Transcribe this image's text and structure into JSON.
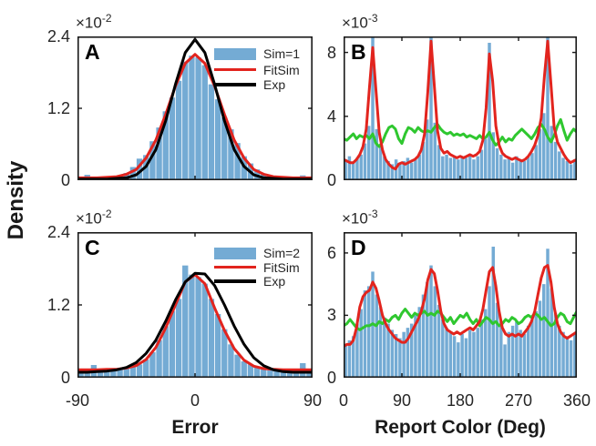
{
  "figure": {
    "ylabel": "Density",
    "xlabel_left": "Error",
    "xlabel_right": "Report Color (Deg)",
    "background": "#ffffff",
    "text_color": "#262626",
    "axis_color": "#1a1a1a"
  },
  "colors": {
    "hist": "#74ABD4",
    "fit": "#E2241E",
    "exp": "#000000",
    "green": "#2FC72F"
  },
  "chart_data": [
    {
      "id": "A",
      "type": "bar",
      "panel_label": "A",
      "exponent": {
        "base": "×10",
        "power": "-2"
      },
      "xlim": [
        -90,
        90
      ],
      "ylim": [
        0,
        2.4
      ],
      "xticks": [
        -90,
        0,
        90
      ],
      "xtick_labels": [
        "-90",
        "0",
        "90"
      ],
      "show_xtick_labels": false,
      "yticks": [
        0,
        1.2,
        2.4
      ],
      "ytick_labels": [
        "0",
        "1.2",
        "2.4"
      ],
      "legend": [
        {
          "swatch": "patch",
          "color_key": "hist",
          "label": "Sim=1"
        },
        {
          "swatch": "line",
          "color_key": "fit",
          "label": "FitSim"
        },
        {
          "swatch": "line",
          "color_key": "exp",
          "label": "Exp"
        }
      ],
      "histogram": {
        "bin_start": -90,
        "bin_width": 5,
        "color_key": "hist",
        "values": [
          0.02,
          0.09,
          0.03,
          0.02,
          0.04,
          0.05,
          0.08,
          0.12,
          0.22,
          0.36,
          0.42,
          0.65,
          0.88,
          1.15,
          1.38,
          1.66,
          1.98,
          2.08,
          2.05,
          1.92,
          1.6,
          1.35,
          1.05,
          0.85,
          0.62,
          0.4,
          0.28,
          0.18,
          0.1,
          0.07,
          0.05,
          0.03,
          0.02,
          0.02,
          0.08,
          0.02
        ]
      },
      "lines": [
        {
          "name": "FitSim",
          "color_key": "fit",
          "x_start": -90,
          "x_step": 7.5,
          "y": [
            0.04,
            0.04,
            0.04,
            0.05,
            0.06,
            0.1,
            0.18,
            0.37,
            0.67,
            1.1,
            1.57,
            1.95,
            2.1,
            1.95,
            1.57,
            1.1,
            0.67,
            0.37,
            0.18,
            0.1,
            0.06,
            0.05,
            0.04,
            0.04,
            0.04
          ]
        },
        {
          "name": "Exp",
          "color_key": "exp",
          "x_start": -90,
          "x_step": 7.5,
          "y": [
            0.02,
            0.02,
            0.02,
            0.02,
            0.03,
            0.04,
            0.09,
            0.23,
            0.51,
            0.99,
            1.6,
            2.13,
            2.35,
            2.13,
            1.6,
            0.99,
            0.51,
            0.23,
            0.09,
            0.04,
            0.03,
            0.02,
            0.02,
            0.02,
            0.02
          ]
        }
      ]
    },
    {
      "id": "B",
      "type": "bar",
      "panel_label": "B",
      "exponent": {
        "base": "×10",
        "power": "-3"
      },
      "xlim": [
        0,
        360
      ],
      "ylim": [
        0,
        9
      ],
      "xticks": [
        0,
        90,
        180,
        270,
        360
      ],
      "xtick_labels": [
        "0",
        "90",
        "180",
        "270",
        "360"
      ],
      "show_xtick_labels": false,
      "yticks": [
        0,
        4,
        8
      ],
      "ytick_labels": [
        "0",
        "4",
        "8"
      ],
      "legend": null,
      "histogram": {
        "bin_start": 0,
        "bin_width": 6,
        "color_key": "hist",
        "values": [
          1.3,
          1.5,
          1.1,
          1.4,
          1.6,
          2.3,
          3.4,
          9.0,
          3.2,
          2.1,
          1.5,
          1.2,
          1.0,
          1.3,
          1.1,
          1.2,
          1.4,
          1.1,
          1.3,
          1.6,
          2.4,
          3.8,
          9.2,
          3.6,
          2.2,
          1.5,
          1.6,
          1.4,
          1.5,
          1.3,
          1.5,
          1.4,
          1.6,
          1.3,
          1.5,
          1.9,
          2.6,
          8.6,
          3.0,
          2.0,
          1.6,
          1.3,
          1.4,
          1.1,
          1.5,
          1.3,
          1.2,
          1.5,
          1.7,
          2.2,
          3.2,
          4.2,
          9.1,
          3.4,
          2.4,
          1.8,
          1.4,
          1.2,
          1.0,
          1.3
        ]
      },
      "lines": [
        {
          "name": "green",
          "color_key": "green",
          "x_start": 0,
          "x_step": 5,
          "y": [
            2.6,
            2.5,
            2.7,
            2.9,
            2.6,
            2.8,
            2.7,
            2.8,
            2.6,
            2.9,
            2.3,
            2.1,
            2.4,
            2.9,
            3.3,
            3.4,
            3.2,
            2.6,
            2.3,
            2.9,
            3.3,
            3.2,
            3.0,
            3.3,
            3.1,
            3.0,
            3.1,
            3.0,
            3.3,
            3.5,
            3.2,
            3.0,
            2.9,
            3.0,
            2.8,
            2.9,
            2.8,
            2.9,
            2.7,
            2.8,
            2.7,
            2.6,
            2.8,
            2.6,
            2.7,
            3.0,
            2.5,
            2.2,
            2.4,
            2.7,
            2.4,
            2.6,
            2.5,
            2.8,
            3.0,
            3.2,
            3.0,
            2.8,
            2.6,
            2.9,
            3.3,
            3.5,
            3.2,
            2.7,
            2.4,
            2.8,
            3.4,
            3.8,
            3.1,
            2.5,
            2.9,
            3.2,
            3.0
          ]
        },
        {
          "name": "FitSim",
          "color_key": "fit",
          "x_start": 0,
          "x_step": 5,
          "y": [
            1.3,
            1.2,
            1.1,
            1.1,
            1.3,
            1.6,
            2.1,
            3.2,
            5.8,
            8.3,
            5.6,
            3.0,
            1.9,
            1.3,
            1.0,
            0.8,
            0.7,
            1.0,
            1.1,
            1.0,
            1.1,
            1.2,
            1.3,
            1.5,
            1.9,
            2.9,
            5.5,
            8.7,
            5.9,
            3.1,
            2.0,
            1.7,
            1.8,
            1.6,
            1.5,
            1.4,
            1.5,
            1.4,
            1.5,
            1.6,
            1.5,
            1.6,
            1.8,
            2.5,
            4.5,
            7.9,
            6.2,
            3.4,
            2.2,
            1.7,
            1.5,
            1.4,
            1.3,
            1.4,
            1.3,
            1.2,
            1.3,
            1.5,
            1.8,
            2.2,
            2.8,
            3.9,
            6.5,
            8.7,
            6.0,
            3.3,
            2.4,
            2.0,
            1.6,
            1.3,
            1.1,
            1.2,
            1.3
          ]
        }
      ]
    },
    {
      "id": "C",
      "type": "bar",
      "panel_label": "C",
      "exponent": {
        "base": "×10",
        "power": "-2"
      },
      "xlim": [
        -90,
        90
      ],
      "ylim": [
        0,
        2.4
      ],
      "xticks": [
        -90,
        0,
        90
      ],
      "xtick_labels": [
        "-90",
        "0",
        "90"
      ],
      "show_xtick_labels": true,
      "yticks": [
        0,
        1.2,
        2.4
      ],
      "ytick_labels": [
        "0",
        "1.2",
        "2.4"
      ],
      "legend": [
        {
          "swatch": "patch",
          "color_key": "hist",
          "label": "Sim=2"
        },
        {
          "swatch": "line",
          "color_key": "fit",
          "label": "FitSim"
        },
        {
          "swatch": "line",
          "color_key": "exp",
          "label": "Exp"
        }
      ],
      "histogram": {
        "bin_start": -90,
        "bin_width": 5,
        "color_key": "hist",
        "values": [
          0.1,
          0.13,
          0.21,
          0.12,
          0.14,
          0.12,
          0.16,
          0.15,
          0.18,
          0.22,
          0.3,
          0.42,
          0.62,
          0.85,
          1.1,
          1.3,
          1.85,
          1.7,
          1.66,
          1.55,
          1.3,
          1.05,
          0.8,
          0.55,
          0.38,
          0.27,
          0.22,
          0.18,
          0.15,
          0.14,
          0.12,
          0.12,
          0.11,
          0.12,
          0.24,
          0.1
        ]
      },
      "lines": [
        {
          "name": "FitSim",
          "color_key": "fit",
          "x_start": -90,
          "x_step": 7.5,
          "y": [
            0.13,
            0.13,
            0.13,
            0.14,
            0.14,
            0.16,
            0.2,
            0.3,
            0.5,
            0.82,
            1.2,
            1.58,
            1.7,
            1.55,
            1.15,
            0.78,
            0.48,
            0.29,
            0.19,
            0.15,
            0.14,
            0.13,
            0.13,
            0.13,
            0.13
          ]
        },
        {
          "name": "Exp",
          "color_key": "exp",
          "x_start": -90,
          "x_step": 7.5,
          "y": [
            0.09,
            0.09,
            0.1,
            0.11,
            0.13,
            0.17,
            0.25,
            0.4,
            0.62,
            0.93,
            1.28,
            1.58,
            1.72,
            1.71,
            1.52,
            1.2,
            0.85,
            0.55,
            0.33,
            0.2,
            0.13,
            0.1,
            0.09,
            0.09,
            0.09
          ]
        }
      ]
    },
    {
      "id": "D",
      "type": "bar",
      "panel_label": "D",
      "exponent": {
        "base": "×10",
        "power": "-3"
      },
      "xlim": [
        0,
        360
      ],
      "ylim": [
        0,
        7
      ],
      "xticks": [
        0,
        90,
        180,
        270,
        360
      ],
      "xtick_labels": [
        "0",
        "90",
        "180",
        "270",
        "360"
      ],
      "show_xtick_labels": true,
      "yticks": [
        0,
        3,
        6
      ],
      "ytick_labels": [
        "0",
        "3",
        "6"
      ],
      "legend": null,
      "histogram": {
        "bin_start": 0,
        "bin_width": 6,
        "color_key": "hist",
        "values": [
          1.6,
          1.8,
          2.0,
          2.6,
          3.3,
          4.2,
          4.4,
          5.1,
          4.0,
          3.4,
          2.9,
          2.6,
          2.3,
          2.1,
          1.9,
          2.2,
          2.4,
          2.6,
          3.0,
          3.4,
          4.0,
          4.6,
          5.4,
          4.4,
          3.5,
          2.8,
          2.4,
          2.2,
          2.0,
          1.7,
          2.1,
          1.9,
          2.3,
          2.2,
          2.4,
          2.8,
          3.3,
          4.4,
          6.3,
          3.6,
          2.7,
          1.6,
          2.2,
          2.5,
          2.7,
          2.3,
          2.1,
          2.5,
          2.8,
          3.2,
          3.7,
          4.5,
          6.2,
          4.3,
          3.1,
          2.5,
          2.2,
          2.0,
          1.8,
          2.1
        ]
      },
      "lines": [
        {
          "name": "green",
          "color_key": "green",
          "x_start": 0,
          "x_step": 5,
          "y": [
            2.5,
            2.6,
            2.8,
            2.6,
            2.4,
            2.3,
            2.4,
            2.5,
            2.5,
            2.6,
            2.5,
            2.7,
            2.6,
            2.8,
            2.7,
            2.9,
            3.0,
            2.8,
            3.1,
            3.3,
            3.1,
            2.9,
            3.1,
            3.0,
            3.1,
            3.2,
            3.0,
            3.1,
            3.0,
            3.2,
            3.1,
            2.9,
            2.7,
            2.9,
            2.6,
            2.8,
            3.0,
            2.9,
            3.1,
            2.8,
            2.6,
            2.8,
            2.5,
            2.7,
            2.9,
            2.8,
            2.6,
            2.7,
            2.5,
            2.6,
            2.8,
            2.7,
            2.9,
            2.8,
            2.6,
            2.7,
            2.9,
            3.0,
            2.9,
            3.1,
            3.0,
            2.8,
            2.9,
            2.7,
            2.5,
            2.6,
            2.9,
            3.1,
            3.0,
            2.7,
            2.6,
            2.9,
            3.2
          ]
        },
        {
          "name": "FitSim",
          "color_key": "fit",
          "x_start": 0,
          "x_step": 5,
          "y": [
            1.5,
            1.6,
            1.6,
            1.8,
            2.4,
            3.4,
            3.9,
            4.1,
            4.2,
            4.6,
            4.3,
            3.7,
            3.0,
            2.6,
            2.3,
            2.1,
            1.9,
            1.8,
            1.7,
            1.7,
            1.9,
            2.2,
            2.5,
            2.8,
            3.2,
            3.8,
            4.7,
            5.2,
            5.0,
            4.2,
            3.2,
            2.6,
            2.3,
            2.2,
            2.1,
            2.2,
            2.1,
            2.2,
            2.3,
            2.4,
            2.3,
            2.5,
            2.7,
            3.3,
            4.2,
            5.1,
            5.3,
            4.4,
            3.2,
            2.4,
            2.1,
            2.0,
            2.1,
            2.0,
            2.1,
            2.0,
            2.2,
            2.4,
            2.7,
            3.2,
            4.0,
            4.8,
            5.3,
            5.4,
            4.6,
            3.4,
            2.6,
            2.2,
            2.0,
            1.9,
            2.0,
            2.1,
            2.2
          ]
        }
      ]
    }
  ]
}
